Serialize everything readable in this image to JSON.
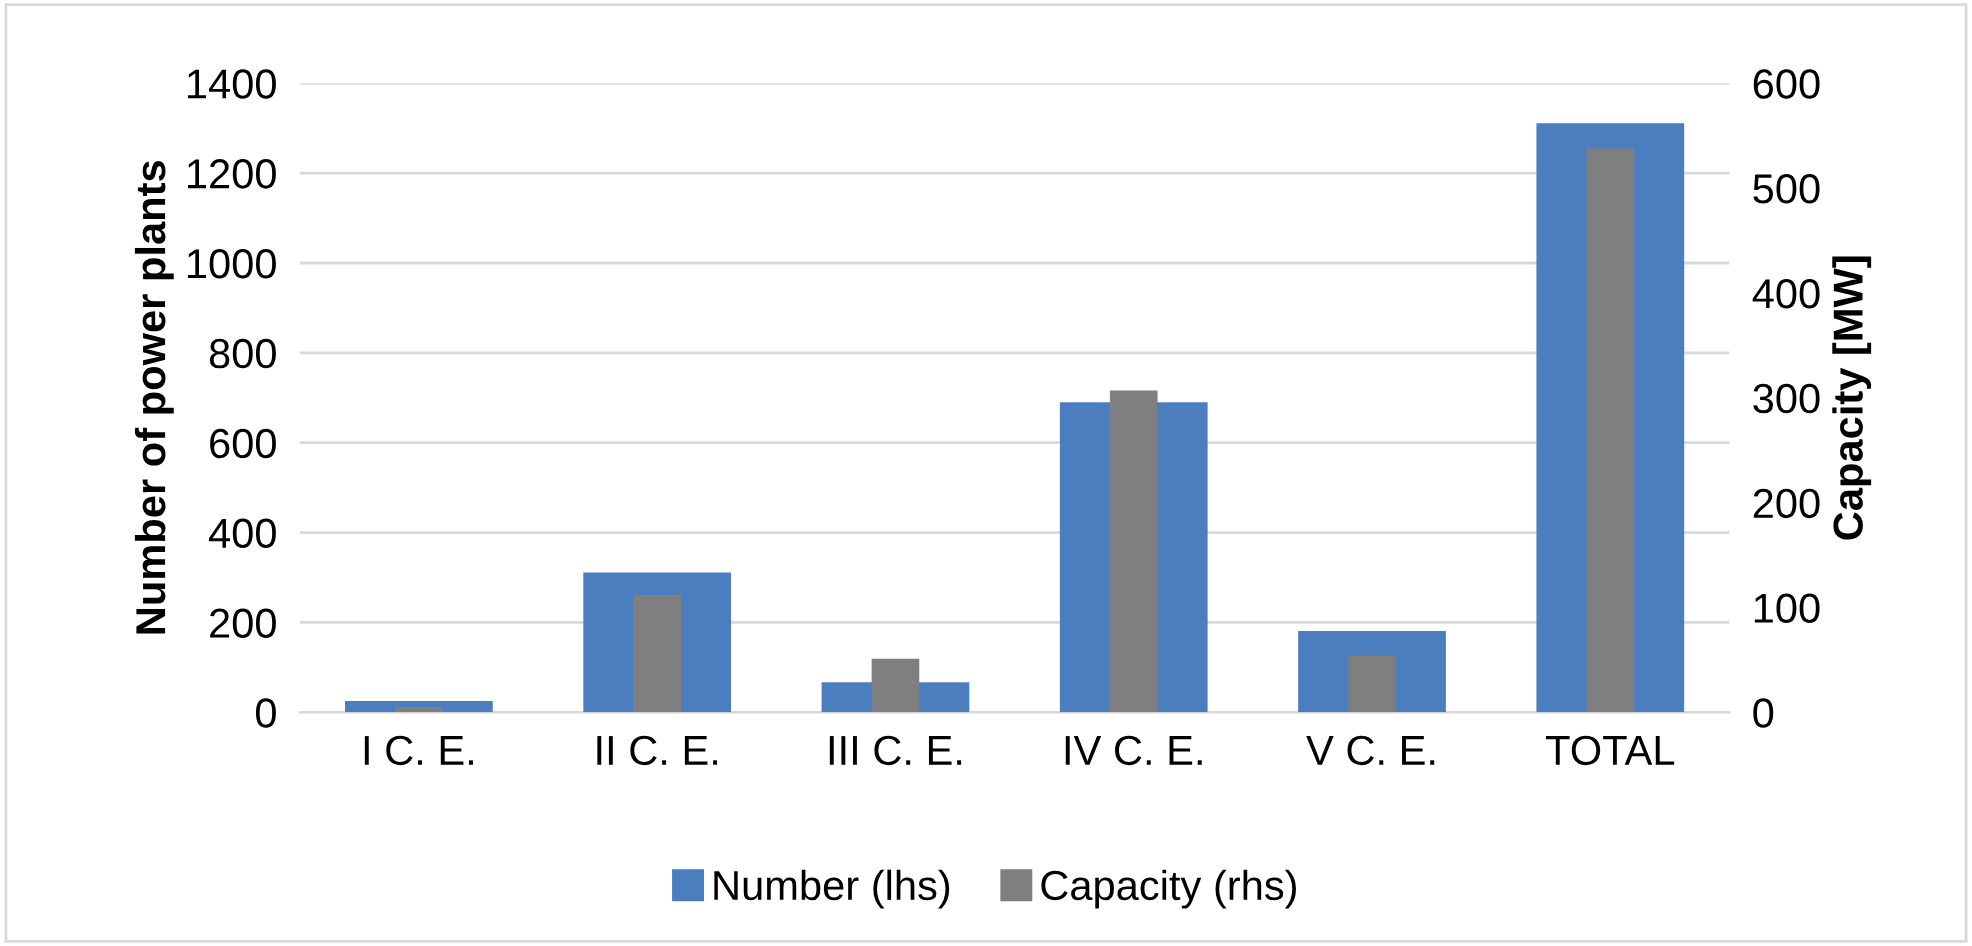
{
  "chart_data": {
    "type": "bar",
    "categories": [
      "I C. E.",
      "II C. E.",
      "III C. E.",
      "IV C. E.",
      "V C. E.",
      "TOTAL"
    ],
    "series": [
      {
        "name": "Number (lhs)",
        "color": "#4a7ebf",
        "values": [
          25,
          311,
          67,
          690,
          181,
          1311
        ]
      },
      {
        "name": "Capacity (rhs)",
        "color": "#7f7f7f",
        "values": [
          5,
          112,
          51,
          307,
          54,
          538
        ],
        "axis": "y2"
      }
    ],
    "ylabel": "Number of power plants",
    "y2label": "Capacity [MW]",
    "ylim": [
      0,
      1400
    ],
    "yticks": [
      0,
      200,
      400,
      600,
      800,
      1000,
      1200,
      1400
    ],
    "y2lim": [
      0,
      600
    ],
    "y2ticks": [
      0,
      100,
      200,
      300,
      400,
      500,
      600
    ],
    "grid": "y",
    "legend": "bottom"
  }
}
